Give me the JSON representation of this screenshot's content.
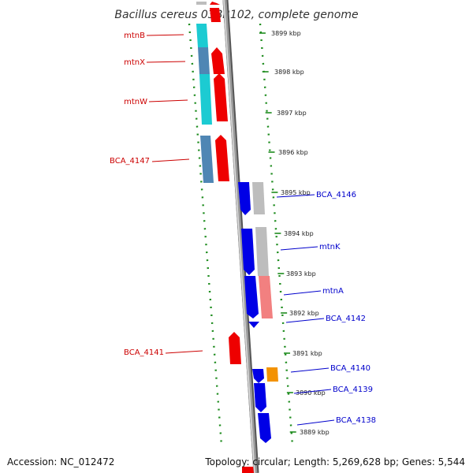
{
  "title": "Bacillus cereus 03BB102, complete genome",
  "footer": {
    "accession": "Accession: NC_012472",
    "topology": "Topology: circular; Length: 5,269,628 bp; Genes: 5,544"
  },
  "colors": {
    "backbone": "#808080",
    "ruler_green": "#1e8c1e",
    "label_red": "#cc0000",
    "label_blue": "#0000cc",
    "cyan": "#1ccbd2",
    "steelblue": "#4f86b4",
    "red": "#ee0000",
    "blue": "#0000e6",
    "gray": "#bdbdbd",
    "pink": "#f28080",
    "orange": "#f39200"
  },
  "ticks": [
    {
      "label": "3899 kbp"
    },
    {
      "label": "3898 kbp"
    },
    {
      "label": "3897 kbp"
    },
    {
      "label": "3896 kbp"
    },
    {
      "label": "3895 kbp"
    },
    {
      "label": "3894 kbp"
    },
    {
      "label": "3893 kbp"
    },
    {
      "label": "3892 kbp"
    },
    {
      "label": "3891 kbp"
    },
    {
      "label": "3890 kbp"
    },
    {
      "label": "3889 kbp"
    }
  ],
  "genes_left": [
    {
      "label": "mtnB"
    },
    {
      "label": "mtnX"
    },
    {
      "label": "mtnW"
    },
    {
      "label": "BCA_4147"
    },
    {
      "label": "BCA_4141"
    }
  ],
  "genes_right": [
    {
      "label": "BCA_4146"
    },
    {
      "label": "mtnK"
    },
    {
      "label": "mtnA"
    },
    {
      "label": "BCA_4142"
    },
    {
      "label": "BCA_4140"
    },
    {
      "label": "BCA_4139"
    },
    {
      "label": "BCA_4138"
    }
  ]
}
